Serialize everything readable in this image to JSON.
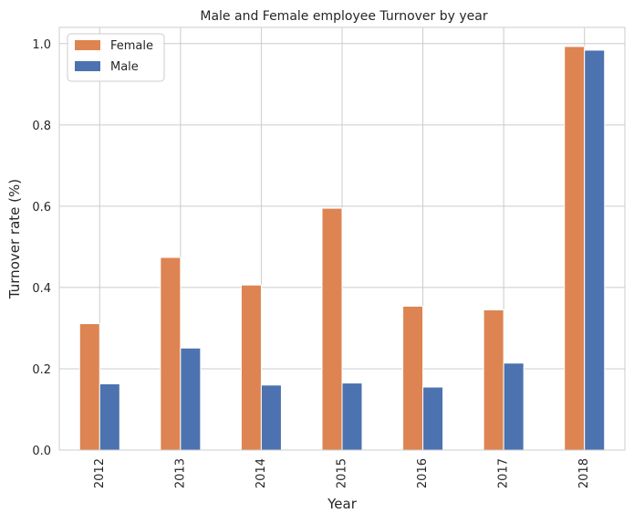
{
  "chart_data": {
    "type": "bar",
    "title": "Male and Female employee Turnover by year",
    "xlabel": "Year",
    "ylabel": "Turnover rate (%)",
    "categories": [
      "2012",
      "2013",
      "2014",
      "2015",
      "2016",
      "2017",
      "2018"
    ],
    "series": [
      {
        "name": "Female",
        "color": "#dd8452",
        "values": [
          0.311,
          0.474,
          0.406,
          0.595,
          0.354,
          0.345,
          0.993
        ]
      },
      {
        "name": "Male",
        "color": "#4c72b0",
        "values": [
          0.163,
          0.251,
          0.16,
          0.165,
          0.155,
          0.214,
          0.984
        ]
      }
    ],
    "ylim": [
      0,
      1.0
    ],
    "yticks": [
      "0.0",
      "0.2",
      "0.4",
      "0.6",
      "0.8",
      "1.0"
    ],
    "grid": true,
    "legend_position": "top-left"
  }
}
